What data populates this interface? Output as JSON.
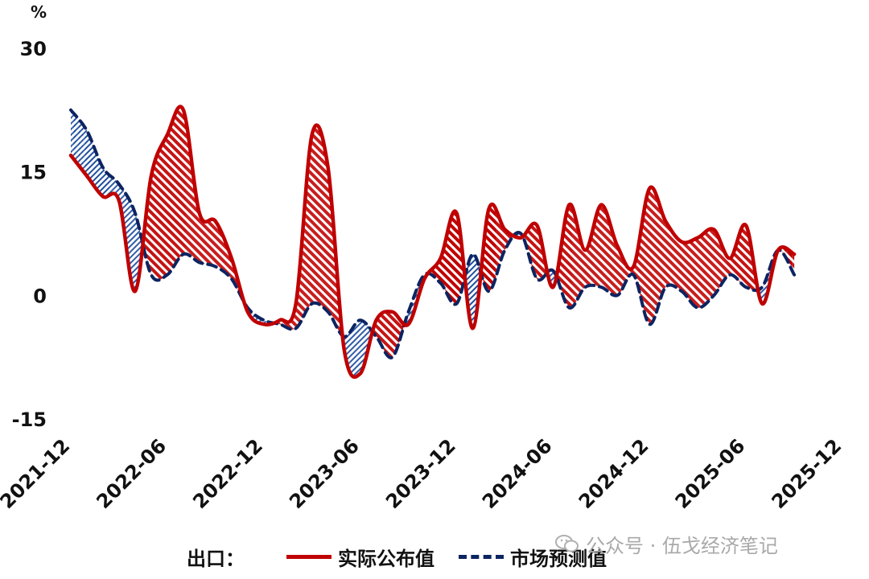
{
  "chart_data": {
    "type": "line",
    "unit": "%",
    "ylim": [
      -15,
      30
    ],
    "yticks": [
      "30",
      "15",
      "0",
      "-15"
    ],
    "x_tick_labels": [
      "2021-12",
      "2022-06",
      "2022-12",
      "2023-06",
      "2023-12",
      "2024-06",
      "2024-12",
      "2025-06",
      "2025-12"
    ],
    "x_range": [
      "2021-12",
      "2025-12"
    ],
    "legend_title": "出口：",
    "legend_position": "bottom",
    "fill_between": {
      "actual_above_forecast_color": "#c00000",
      "forecast_above_actual_color": "#1f4e9c",
      "pattern": "diagonal-hatch"
    },
    "series": [
      {
        "name": "实际公布值",
        "style": "solid",
        "color": "#c00000",
        "points": [
          [
            "2021-12",
            17.0
          ],
          [
            "2022-01",
            14.5
          ],
          [
            "2022-02",
            12.0
          ],
          [
            "2022-03",
            11.5
          ],
          [
            "2022-04",
            0.5
          ],
          [
            "2022-05",
            14.5
          ],
          [
            "2022-06",
            19.5
          ],
          [
            "2022-07",
            22.5
          ],
          [
            "2022-08",
            10.0
          ],
          [
            "2022-09",
            9.0
          ],
          [
            "2022-10",
            4.5
          ],
          [
            "2022-11",
            -2.0
          ],
          [
            "2022-12",
            -3.5
          ],
          [
            "2023-01",
            -3.0
          ],
          [
            "2023-02",
            -1.0
          ],
          [
            "2023-03",
            19.5
          ],
          [
            "2023-04",
            15.5
          ],
          [
            "2023-05",
            -6.5
          ],
          [
            "2023-06",
            -9.5
          ],
          [
            "2023-07",
            -3.0
          ],
          [
            "2023-08",
            -2.0
          ],
          [
            "2023-09",
            -3.5
          ],
          [
            "2023-10",
            2.0
          ],
          [
            "2023-11",
            4.5
          ],
          [
            "2023-12",
            10.0
          ],
          [
            "2024-01",
            -4.0
          ],
          [
            "2024-02",
            10.5
          ],
          [
            "2024-03",
            8.0
          ],
          [
            "2024-04",
            7.0
          ],
          [
            "2024-05",
            8.5
          ],
          [
            "2024-06",
            1.0
          ],
          [
            "2024-07",
            11.0
          ],
          [
            "2024-08",
            5.5
          ],
          [
            "2024-09",
            11.0
          ],
          [
            "2024-10",
            6.0
          ],
          [
            "2024-11",
            3.5
          ],
          [
            "2024-12",
            13.0
          ],
          [
            "2025-01",
            9.0
          ],
          [
            "2025-02",
            6.5
          ],
          [
            "2025-03",
            7.0
          ],
          [
            "2025-04",
            8.0
          ],
          [
            "2025-05",
            4.5
          ],
          [
            "2025-06",
            8.5
          ],
          [
            "2025-07",
            -1.0
          ],
          [
            "2025-08",
            5.5
          ],
          [
            "2025-09",
            5.0
          ]
        ]
      },
      {
        "name": "市场预测值",
        "style": "dashed",
        "color": "#0c2461",
        "points": [
          [
            "2021-12",
            22.5
          ],
          [
            "2022-01",
            20.0
          ],
          [
            "2022-02",
            15.5
          ],
          [
            "2022-03",
            13.5
          ],
          [
            "2022-04",
            10.0
          ],
          [
            "2022-05",
            2.5
          ],
          [
            "2022-06",
            2.5
          ],
          [
            "2022-07",
            5.0
          ],
          [
            "2022-08",
            4.0
          ],
          [
            "2022-09",
            3.5
          ],
          [
            "2022-10",
            2.0
          ],
          [
            "2022-11",
            -1.5
          ],
          [
            "2022-12",
            -3.0
          ],
          [
            "2023-01",
            -3.5
          ],
          [
            "2023-02",
            -4.0
          ],
          [
            "2023-03",
            -1.0
          ],
          [
            "2023-04",
            -2.0
          ],
          [
            "2023-05",
            -5.0
          ],
          [
            "2023-06",
            -3.0
          ],
          [
            "2023-07",
            -5.0
          ],
          [
            "2023-08",
            -7.5
          ],
          [
            "2023-09",
            -2.0
          ],
          [
            "2023-10",
            2.5
          ],
          [
            "2023-11",
            1.5
          ],
          [
            "2023-12",
            -1.0
          ],
          [
            "2024-01",
            5.0
          ],
          [
            "2024-02",
            0.5
          ],
          [
            "2024-03",
            5.5
          ],
          [
            "2024-04",
            7.5
          ],
          [
            "2024-05",
            2.0
          ],
          [
            "2024-06",
            3.0
          ],
          [
            "2024-07",
            -1.5
          ],
          [
            "2024-08",
            1.0
          ],
          [
            "2024-09",
            1.0
          ],
          [
            "2024-10",
            0.0
          ],
          [
            "2024-11",
            2.5
          ],
          [
            "2024-12",
            -3.5
          ],
          [
            "2025-01",
            1.0
          ],
          [
            "2025-02",
            0.5
          ],
          [
            "2025-03",
            -1.5
          ],
          [
            "2025-04",
            0.0
          ],
          [
            "2025-05",
            2.5
          ],
          [
            "2025-06",
            1.0
          ],
          [
            "2025-07",
            1.0
          ],
          [
            "2025-08",
            5.5
          ],
          [
            "2025-09",
            2.5
          ]
        ]
      }
    ]
  },
  "watermark": {
    "icon": "wechat-icon",
    "text": "公众号 · 伍戈经济笔记"
  }
}
